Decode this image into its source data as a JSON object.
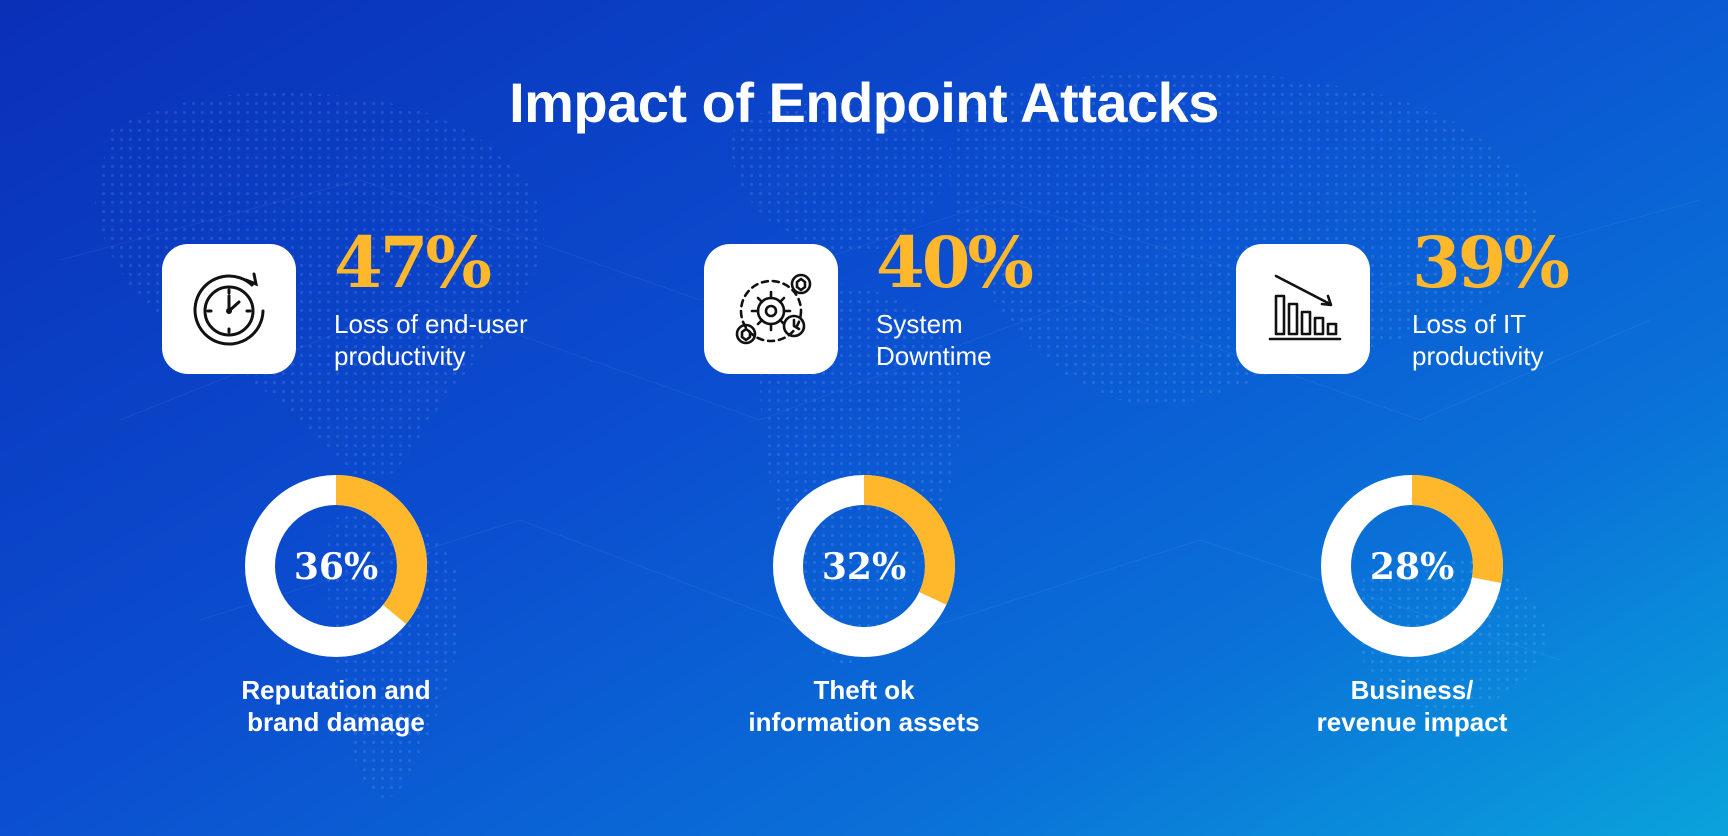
{
  "title": "Impact of Endpoint Attacks",
  "colors": {
    "accent": "#ffb72c",
    "ring": "#ffffff",
    "background": "#0b4fd0"
  },
  "stats": [
    {
      "value": "47%",
      "line1": "Loss of end-user",
      "line2": "productivity",
      "icon": "stopwatch-icon"
    },
    {
      "value": "40%",
      "line1": "System",
      "line2": "Downtime",
      "icon": "gears-clock-icon"
    },
    {
      "value": "39%",
      "line1": "Loss of IT",
      "line2": "productivity",
      "icon": "declining-bar-chart-icon"
    }
  ],
  "chart_data": [
    {
      "type": "pie",
      "value": 36,
      "label": "36%",
      "caption_line1": "Reputation and",
      "caption_line2": "brand damage"
    },
    {
      "type": "pie",
      "value": 32,
      "label": "32%",
      "caption_line1": "Theft ok",
      "caption_line2": "information assets"
    },
    {
      "type": "pie",
      "value": 28,
      "label": "28%",
      "caption_line1": "Business/",
      "caption_line2": "revenue impact"
    }
  ]
}
